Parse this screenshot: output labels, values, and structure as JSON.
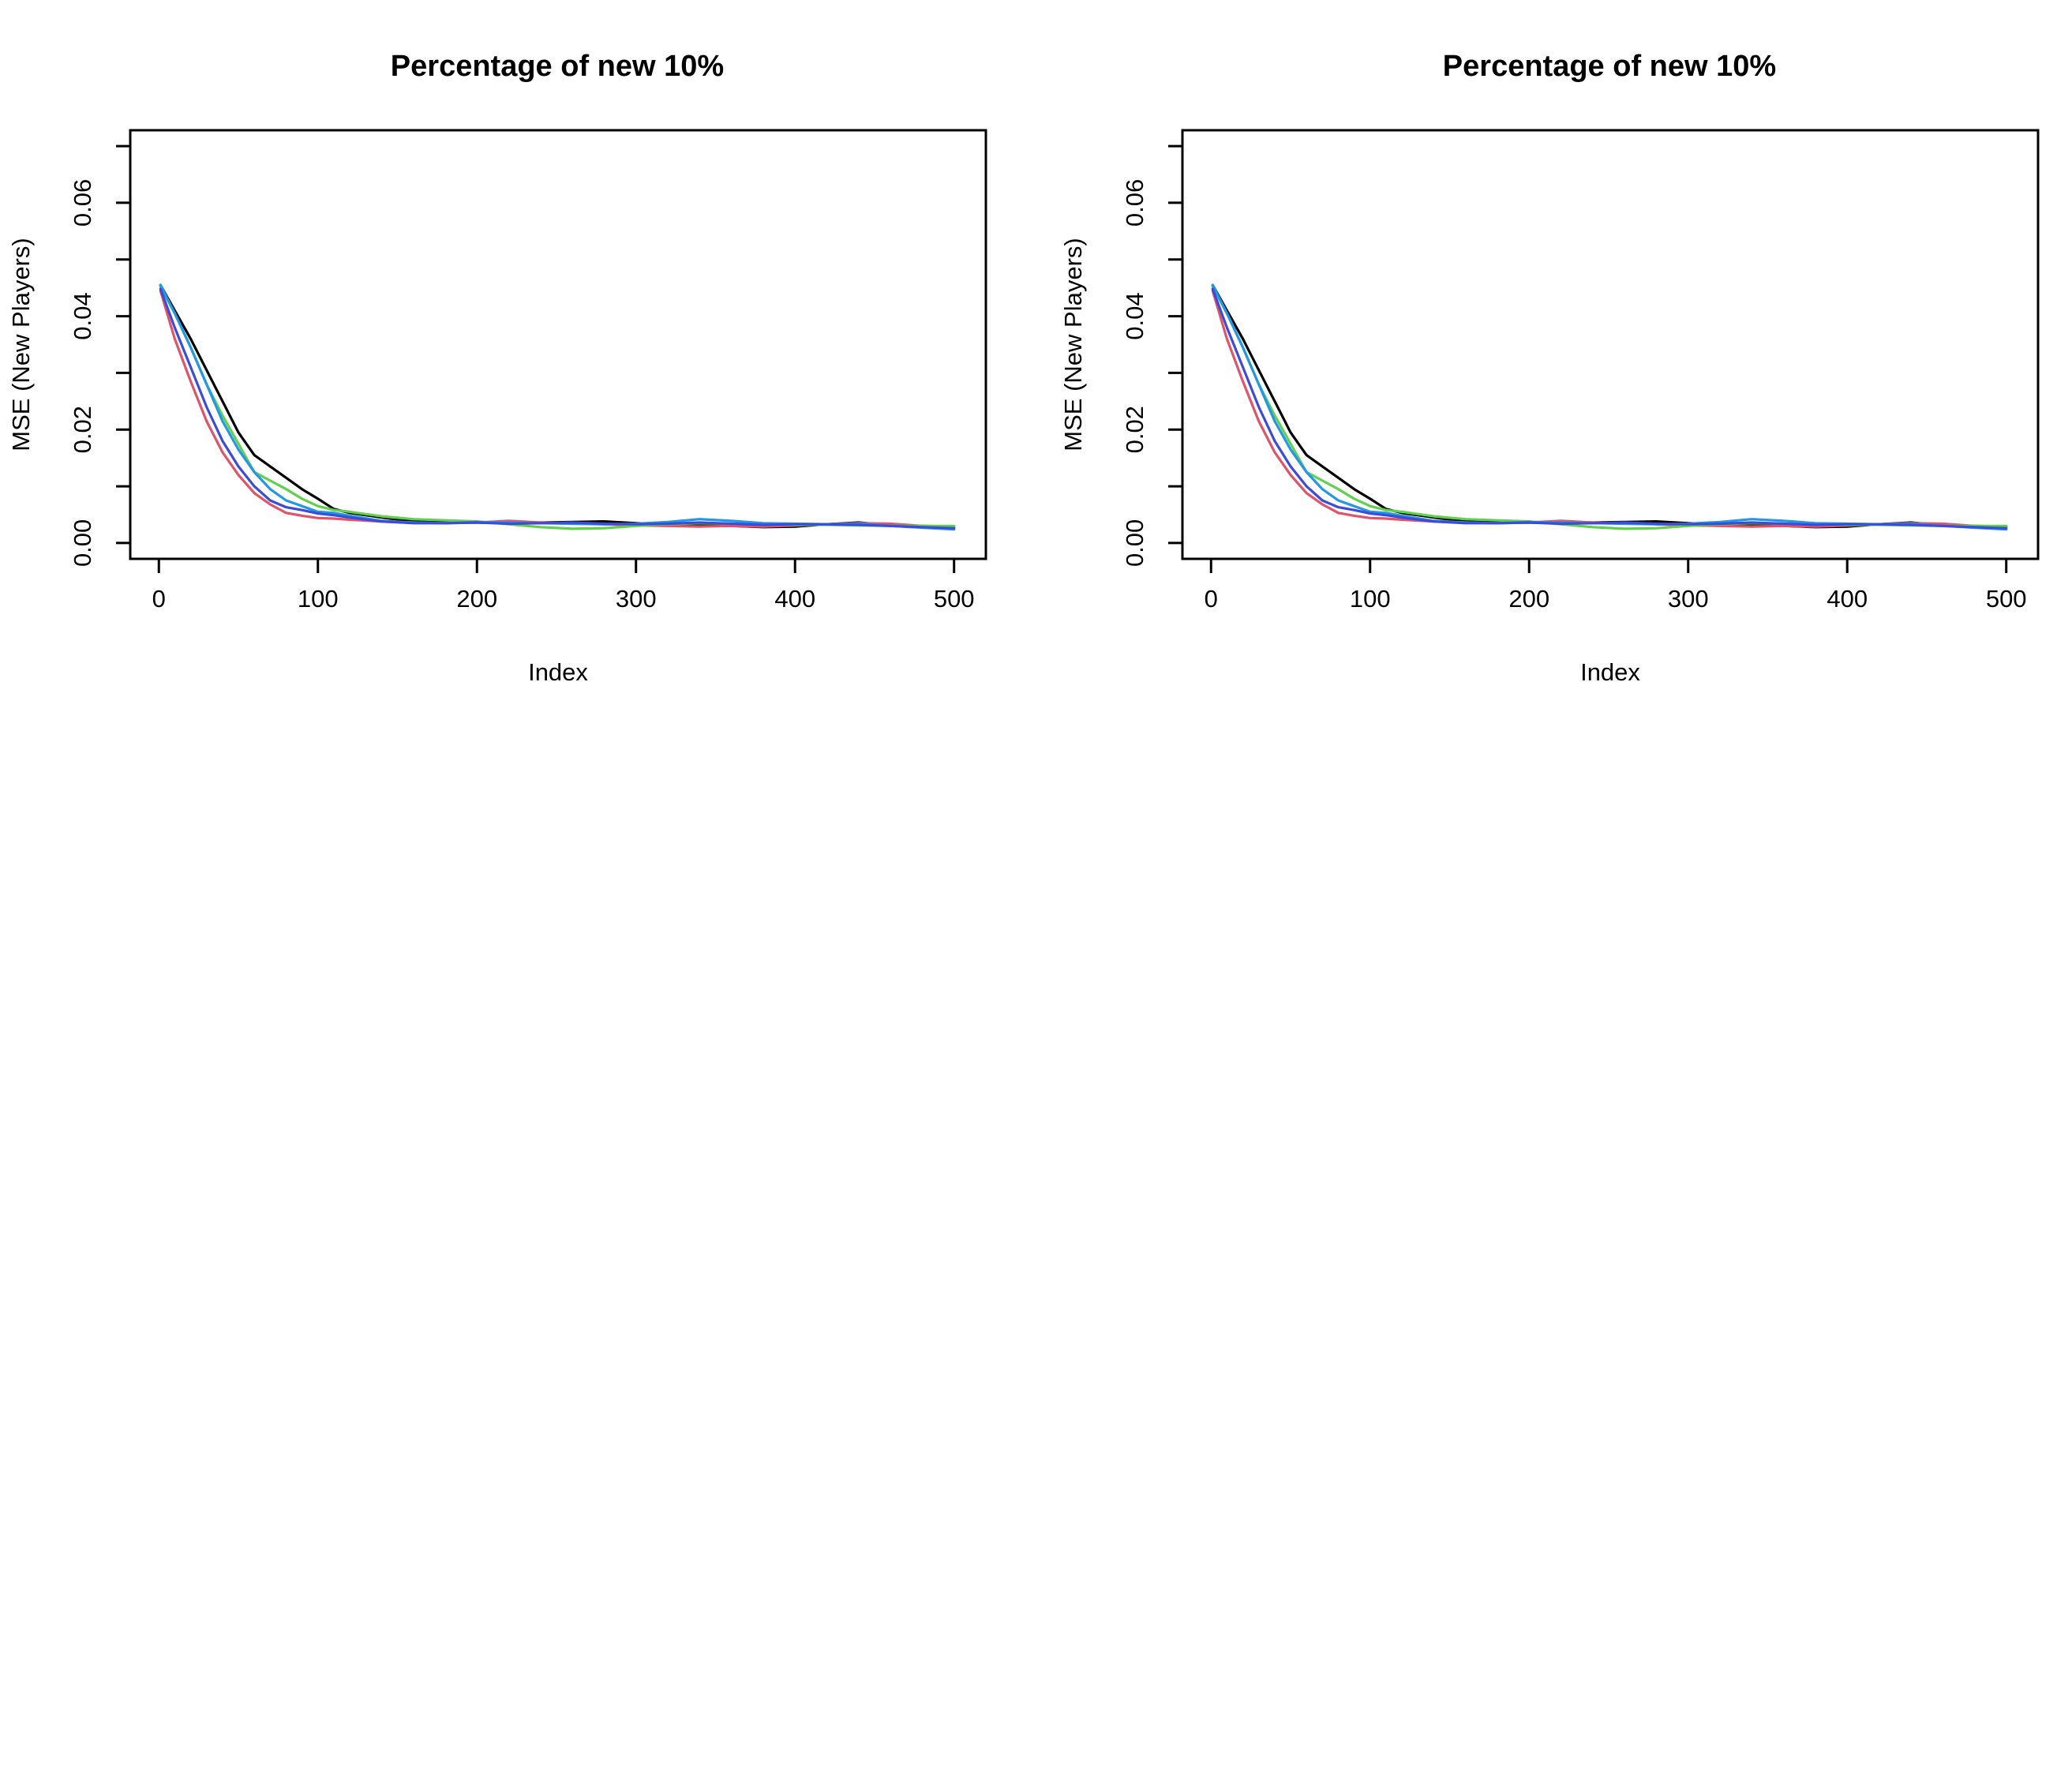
{
  "chart_data": [
    {
      "type": "line",
      "title": "Percentage of new 10%",
      "xlabel": "Index",
      "ylabel": "MSE (New Players)",
      "xlim": [
        -18,
        520
      ],
      "ylim": [
        -0.0028,
        0.0728
      ],
      "xticks": [
        0,
        100,
        200,
        300,
        400,
        500
      ],
      "xtick_labels": [
        "0",
        "100",
        "200",
        "300",
        "400",
        "500"
      ],
      "yticks": [
        0,
        0.01,
        0.02,
        0.03,
        0.04,
        0.05,
        0.06,
        0.07
      ],
      "ytick_labels": [
        "0.00",
        "",
        "0.02",
        "",
        "0.04",
        "",
        "0.06",
        ""
      ],
      "grid": false,
      "series": [
        {
          "color": "#000000",
          "x": [
            1,
            10,
            20,
            30,
            40,
            50,
            60,
            70,
            80,
            90,
            100,
            110,
            120,
            140,
            160,
            180,
            200,
            220,
            240,
            260,
            280,
            300,
            320,
            340,
            360,
            380,
            400,
            420,
            440,
            460,
            480,
            500
          ],
          "y": [
            0.0455,
            0.041,
            0.036,
            0.0305,
            0.025,
            0.0195,
            0.0155,
            0.0135,
            0.0115,
            0.0095,
            0.0078,
            0.006,
            0.0053,
            0.0045,
            0.0038,
            0.0036,
            0.0036,
            0.0035,
            0.0036,
            0.0037,
            0.0038,
            0.0035,
            0.0033,
            0.0033,
            0.003,
            0.0028,
            0.0029,
            0.0033,
            0.0036,
            0.0031,
            0.003,
            0.0029
          ]
        },
        {
          "color": "#DF536B",
          "x": [
            1,
            10,
            20,
            30,
            40,
            50,
            60,
            70,
            80,
            90,
            100,
            110,
            120,
            140,
            160,
            180,
            200,
            220,
            240,
            260,
            280,
            300,
            320,
            340,
            360,
            380,
            400,
            420,
            440,
            460,
            480,
            500
          ],
          "y": [
            0.0445,
            0.036,
            0.0285,
            0.0215,
            0.016,
            0.012,
            0.0088,
            0.0068,
            0.0053,
            0.0048,
            0.0044,
            0.0043,
            0.0041,
            0.0038,
            0.0036,
            0.0035,
            0.0036,
            0.0039,
            0.0036,
            0.0035,
            0.0033,
            0.0031,
            0.003,
            0.0029,
            0.003,
            0.0029,
            0.0031,
            0.0033,
            0.0035,
            0.0034,
            0.003,
            0.0028
          ]
        },
        {
          "color": "#61D04F",
          "x": [
            1,
            10,
            20,
            30,
            40,
            50,
            60,
            70,
            80,
            90,
            100,
            110,
            120,
            140,
            160,
            180,
            200,
            220,
            240,
            260,
            280,
            300,
            320,
            340,
            360,
            380,
            400,
            420,
            440,
            460,
            480,
            500
          ],
          "y": [
            0.0452,
            0.0405,
            0.0345,
            0.028,
            0.0225,
            0.0175,
            0.0125,
            0.011,
            0.0095,
            0.0078,
            0.0065,
            0.0058,
            0.0055,
            0.0047,
            0.0042,
            0.004,
            0.0038,
            0.0033,
            0.0028,
            0.0025,
            0.0026,
            0.003,
            0.0033,
            0.0035,
            0.0034,
            0.0033,
            0.0032,
            0.0032,
            0.0031,
            0.003,
            0.003,
            0.003
          ]
        },
        {
          "color": "#2297E6",
          "x": [
            1,
            10,
            20,
            30,
            40,
            50,
            60,
            70,
            80,
            90,
            100,
            110,
            120,
            140,
            160,
            180,
            200,
            220,
            240,
            260,
            280,
            300,
            320,
            340,
            360,
            380,
            400,
            420,
            440,
            460,
            480,
            500
          ],
          "y": [
            0.0455,
            0.0405,
            0.0345,
            0.028,
            0.0215,
            0.0165,
            0.0125,
            0.0095,
            0.0075,
            0.0065,
            0.0055,
            0.0053,
            0.0048,
            0.0039,
            0.0036,
            0.0035,
            0.0037,
            0.0036,
            0.0035,
            0.0034,
            0.0033,
            0.0034,
            0.0037,
            0.0042,
            0.0039,
            0.0035,
            0.0034,
            0.0033,
            0.0034,
            0.003,
            0.0027,
            0.0024
          ]
        },
        {
          "color": "#3C4BD8",
          "x": [
            1,
            10,
            20,
            30,
            40,
            50,
            60,
            70,
            80,
            90,
            100,
            110,
            120,
            140,
            160,
            180,
            200,
            220,
            240,
            260,
            280,
            300,
            320,
            340,
            360,
            380,
            400,
            420,
            440,
            460,
            480,
            500
          ],
          "y": [
            0.0448,
            0.038,
            0.031,
            0.024,
            0.018,
            0.0135,
            0.01,
            0.0075,
            0.0063,
            0.0058,
            0.0052,
            0.0049,
            0.0045,
            0.0038,
            0.0035,
            0.0035,
            0.0036,
            0.0034,
            0.0035,
            0.0036,
            0.0034,
            0.0033,
            0.0034,
            0.0036,
            0.0034,
            0.0032,
            0.0033,
            0.0033,
            0.0032,
            0.003,
            0.0028,
            0.0026
          ]
        }
      ]
    },
    {
      "type": "line",
      "title": "Percentage of new 10%",
      "xlabel": "Index",
      "ylabel": "MSE (New Players)",
      "xlim": [
        -18,
        520
      ],
      "ylim": [
        -0.0028,
        0.0728
      ],
      "xticks": [
        0,
        100,
        200,
        300,
        400,
        500
      ],
      "xtick_labels": [
        "0",
        "100",
        "200",
        "300",
        "400",
        "500"
      ],
      "yticks": [
        0,
        0.01,
        0.02,
        0.03,
        0.04,
        0.05,
        0.06,
        0.07
      ],
      "ytick_labels": [
        "0.00",
        "",
        "0.02",
        "",
        "0.04",
        "",
        "0.06",
        ""
      ],
      "grid": false,
      "series": [
        {
          "color": "#000000",
          "x": [
            1,
            10,
            20,
            30,
            40,
            50,
            60,
            70,
            80,
            90,
            100,
            110,
            120,
            140,
            160,
            180,
            200,
            220,
            240,
            260,
            280,
            300,
            320,
            340,
            360,
            380,
            400,
            420,
            440,
            460,
            480,
            500
          ],
          "y": [
            0.0455,
            0.041,
            0.036,
            0.0305,
            0.025,
            0.0195,
            0.0155,
            0.0135,
            0.0115,
            0.0095,
            0.0078,
            0.006,
            0.0053,
            0.0045,
            0.0038,
            0.0036,
            0.0036,
            0.0035,
            0.0036,
            0.0037,
            0.0038,
            0.0035,
            0.0033,
            0.0033,
            0.003,
            0.0028,
            0.0029,
            0.0033,
            0.0036,
            0.0031,
            0.003,
            0.0029
          ]
        },
        {
          "color": "#DF536B",
          "x": [
            1,
            10,
            20,
            30,
            40,
            50,
            60,
            70,
            80,
            90,
            100,
            110,
            120,
            140,
            160,
            180,
            200,
            220,
            240,
            260,
            280,
            300,
            320,
            340,
            360,
            380,
            400,
            420,
            440,
            460,
            480,
            500
          ],
          "y": [
            0.0445,
            0.036,
            0.0285,
            0.0215,
            0.016,
            0.012,
            0.0088,
            0.0068,
            0.0053,
            0.0048,
            0.0044,
            0.0043,
            0.0041,
            0.0038,
            0.0036,
            0.0035,
            0.0036,
            0.0039,
            0.0036,
            0.0035,
            0.0033,
            0.0031,
            0.003,
            0.0029,
            0.003,
            0.0029,
            0.0031,
            0.0033,
            0.0035,
            0.0034,
            0.003,
            0.0028
          ]
        },
        {
          "color": "#61D04F",
          "x": [
            1,
            10,
            20,
            30,
            40,
            50,
            60,
            70,
            80,
            90,
            100,
            110,
            120,
            140,
            160,
            180,
            200,
            220,
            240,
            260,
            280,
            300,
            320,
            340,
            360,
            380,
            400,
            420,
            440,
            460,
            480,
            500
          ],
          "y": [
            0.0452,
            0.0405,
            0.0345,
            0.028,
            0.0225,
            0.0175,
            0.0125,
            0.011,
            0.0095,
            0.0078,
            0.0065,
            0.0058,
            0.0055,
            0.0047,
            0.0042,
            0.004,
            0.0038,
            0.0033,
            0.0028,
            0.0025,
            0.0026,
            0.003,
            0.0033,
            0.0035,
            0.0034,
            0.0033,
            0.0032,
            0.0032,
            0.0031,
            0.003,
            0.003,
            0.003
          ]
        },
        {
          "color": "#2297E6",
          "x": [
            1,
            10,
            20,
            30,
            40,
            50,
            60,
            70,
            80,
            90,
            100,
            110,
            120,
            140,
            160,
            180,
            200,
            220,
            240,
            260,
            280,
            300,
            320,
            340,
            360,
            380,
            400,
            420,
            440,
            460,
            480,
            500
          ],
          "y": [
            0.0455,
            0.0405,
            0.0345,
            0.028,
            0.0215,
            0.0165,
            0.0125,
            0.0095,
            0.0075,
            0.0065,
            0.0055,
            0.0053,
            0.0048,
            0.0039,
            0.0036,
            0.0035,
            0.0037,
            0.0036,
            0.0035,
            0.0034,
            0.0033,
            0.0034,
            0.0037,
            0.0042,
            0.0039,
            0.0035,
            0.0034,
            0.0033,
            0.0034,
            0.003,
            0.0027,
            0.0024
          ]
        },
        {
          "color": "#3C4BD8",
          "x": [
            1,
            10,
            20,
            30,
            40,
            50,
            60,
            70,
            80,
            90,
            100,
            110,
            120,
            140,
            160,
            180,
            200,
            220,
            240,
            260,
            280,
            300,
            320,
            340,
            360,
            380,
            400,
            420,
            440,
            460,
            480,
            500
          ],
          "y": [
            0.0448,
            0.038,
            0.031,
            0.024,
            0.018,
            0.0135,
            0.01,
            0.0075,
            0.0063,
            0.0058,
            0.0052,
            0.0049,
            0.0045,
            0.0038,
            0.0035,
            0.0035,
            0.0036,
            0.0034,
            0.0035,
            0.0036,
            0.0034,
            0.0033,
            0.0034,
            0.0036,
            0.0034,
            0.0032,
            0.0033,
            0.0033,
            0.0032,
            0.003,
            0.0028,
            0.0026
          ]
        }
      ]
    }
  ]
}
